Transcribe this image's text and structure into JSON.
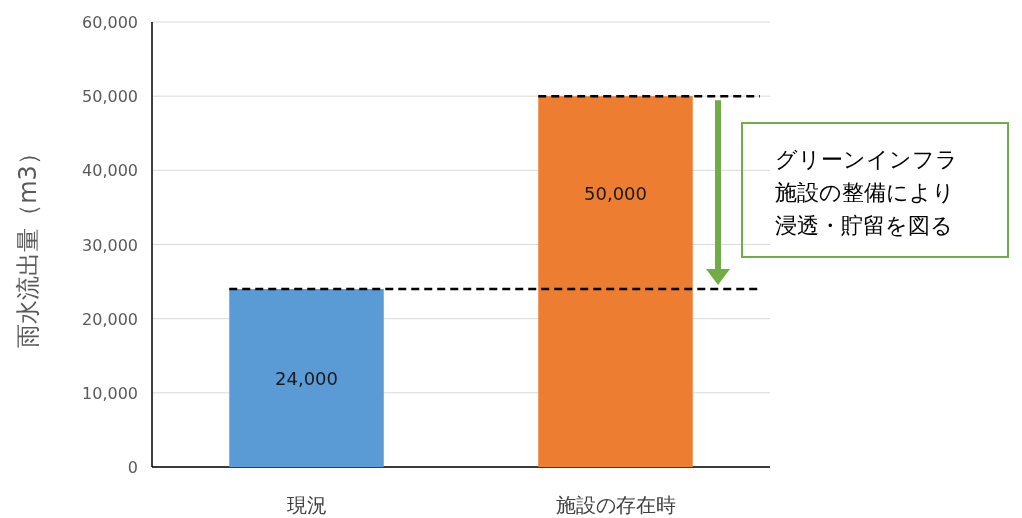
{
  "chart_data": {
    "type": "bar",
    "ylabel": "雨水流出量（m3）",
    "categories": [
      "現況",
      "施設の存在時"
    ],
    "values": [
      24000,
      50000
    ],
    "colors": [
      "#5b9bd5",
      "#ed7d31"
    ],
    "ylim": [
      0,
      60000
    ],
    "yticks": [
      0,
      {
        "value": 10000,
        "label": "10,000"
      },
      {
        "value": 20000,
        "label": "20,000"
      },
      {
        "value": 30000,
        "label": "30,000"
      },
      {
        "value": 40000,
        "label": "40,000"
      },
      {
        "value": 50000,
        "label": "50,000"
      },
      {
        "value": 60000,
        "label": "60,000"
      }
    ],
    "grid": "y",
    "value_labels": [
      "24,000",
      "50,000"
    ],
    "ref_lines": [
      {
        "axis": "y",
        "value": 24000,
        "color": "#000000",
        "line_style": "dashed"
      },
      {
        "axis": "y",
        "value": 50000,
        "color": "#000000",
        "line_style": "dashed"
      }
    ],
    "annotations": [
      "グリーンインフラ施設の整備により浸透・貯留を図る"
    ]
  }
}
